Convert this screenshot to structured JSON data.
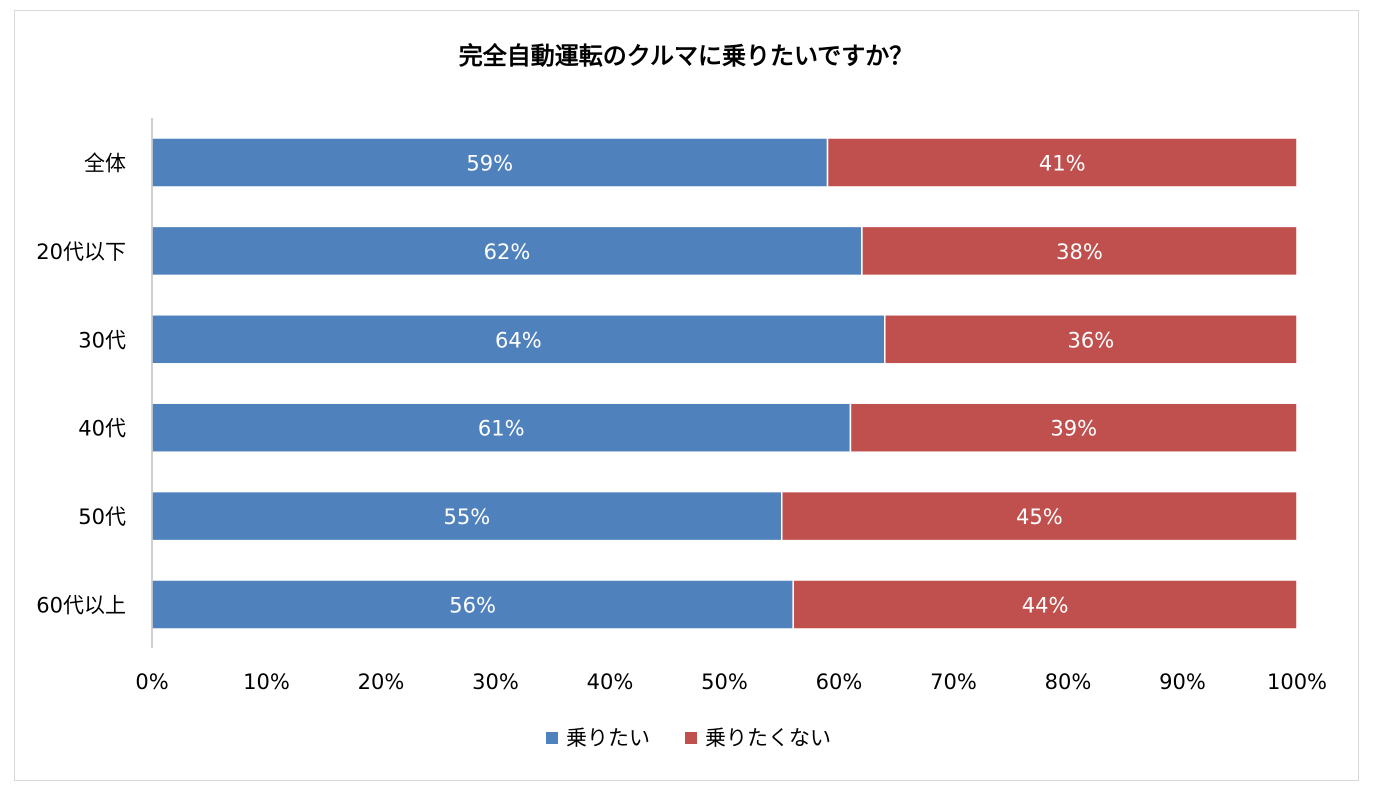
{
  "chart_data": {
    "type": "bar",
    "orientation": "horizontal",
    "stacked": true,
    "title": "完全自動運転のクルマに乗りたいですか？",
    "categories": [
      "全体",
      "20代以下",
      "30代",
      "40代",
      "50代",
      "60代以上"
    ],
    "series": [
      {
        "name": "乗りたい",
        "color": "#4f81bd",
        "values": [
          59,
          62,
          64,
          61,
          55,
          56
        ],
        "labels": [
          "59%",
          "62%",
          "64%",
          "61%",
          "55%",
          "56%"
        ]
      },
      {
        "name": "乗りたくない",
        "color": "#c0504d",
        "values": [
          41,
          38,
          36,
          39,
          45,
          44
        ],
        "labels": [
          "41%",
          "38%",
          "36%",
          "39%",
          "45%",
          "44%"
        ]
      }
    ],
    "xlim": [
      0,
      100
    ],
    "xticks": [
      "0%",
      "10%",
      "20%",
      "30%",
      "40%",
      "50%",
      "60%",
      "70%",
      "80%",
      "90%",
      "100%"
    ],
    "legend": {
      "position": "bottom",
      "items": [
        "乗りたい",
        "乗りたくない"
      ]
    },
    "grid": false
  }
}
